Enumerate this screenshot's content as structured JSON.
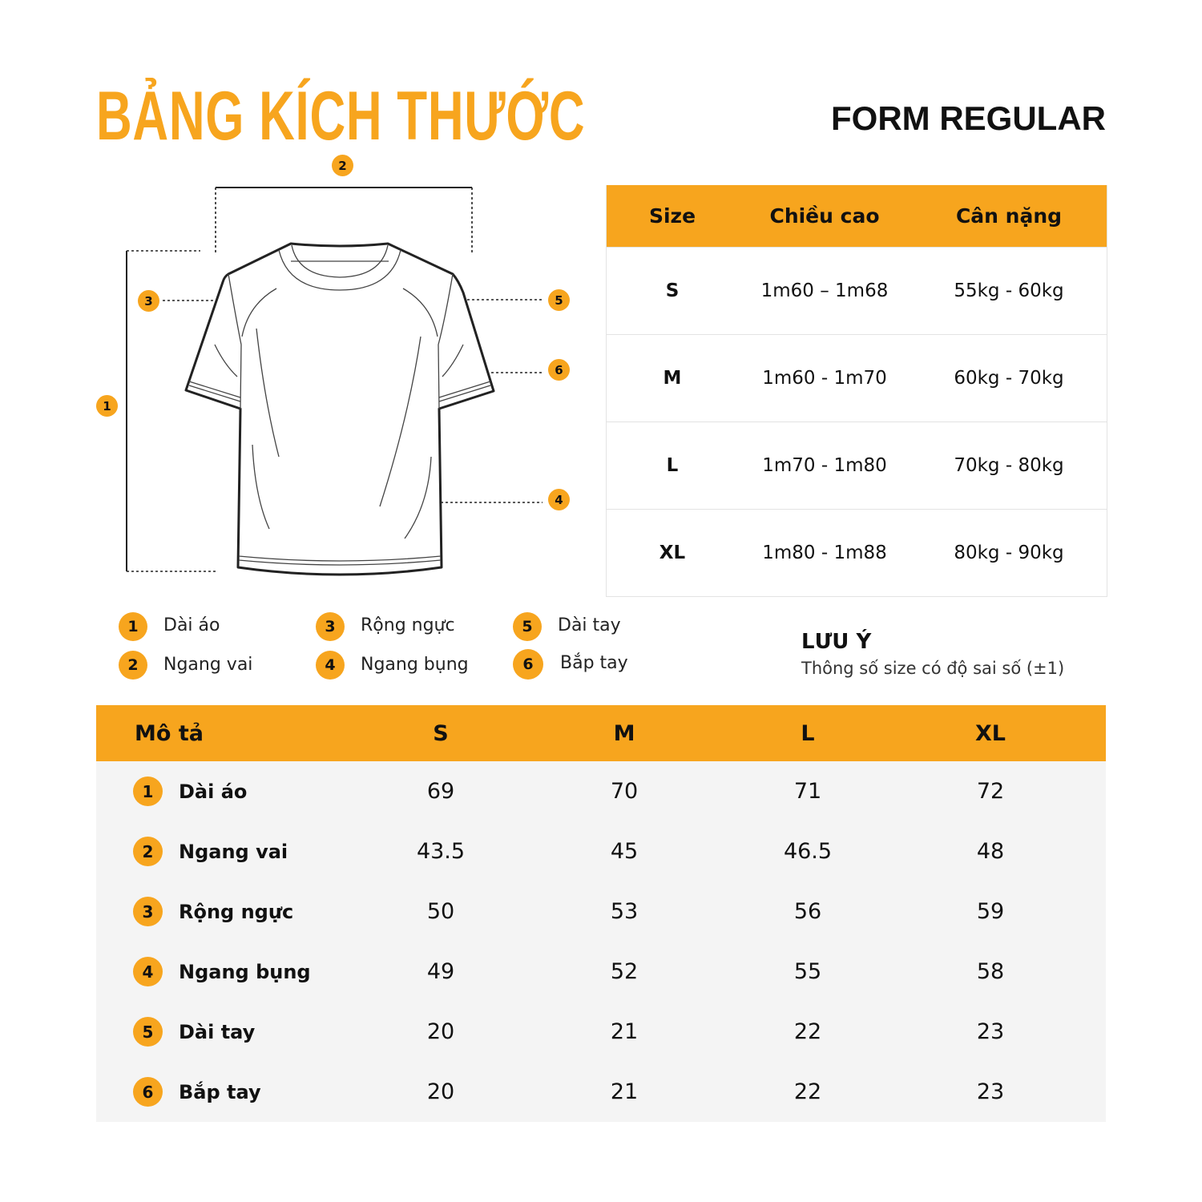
{
  "title": "BẢNG KÍCH THƯỚC",
  "form": "FORM REGULAR",
  "colors": {
    "accent": "#F7A51E",
    "row_alt": "#F4F4F4"
  },
  "diagram_markers": [
    "1",
    "2",
    "3",
    "4",
    "5",
    "6"
  ],
  "size_table": {
    "headers": [
      "Size",
      "Chiều cao",
      "Cân nặng"
    ],
    "rows": [
      [
        "S",
        "1m60 – 1m68",
        "55kg - 60kg"
      ],
      [
        "M",
        "1m60 - 1m70",
        "60kg - 70kg"
      ],
      [
        "L",
        "1m70 - 1m80",
        "70kg - 80kg"
      ],
      [
        "XL",
        "1m80 - 1m88",
        "80kg - 90kg"
      ]
    ]
  },
  "legend": [
    {
      "num": "1",
      "label": "Dài áo"
    },
    {
      "num": "2",
      "label": "Ngang vai"
    },
    {
      "num": "3",
      "label": "Rộng ngực"
    },
    {
      "num": "4",
      "label": "Ngang bụng"
    },
    {
      "num": "5",
      "label": "Dài tay"
    },
    {
      "num": "6",
      "label": "Bắp tay"
    }
  ],
  "note": {
    "title": "LƯU Ý",
    "text": "Thông số size có độ sai số (±1)"
  },
  "measurements": {
    "headers": [
      "Mô tả",
      "S",
      "M",
      "L",
      "XL"
    ],
    "rows": [
      {
        "num": "1",
        "label": "Dài áo",
        "values": [
          "69",
          "70",
          "71",
          "72"
        ]
      },
      {
        "num": "2",
        "label": "Ngang vai",
        "values": [
          "43.5",
          "45",
          "46.5",
          "48"
        ]
      },
      {
        "num": "3",
        "label": "Rộng ngực",
        "values": [
          "50",
          "53",
          "56",
          "59"
        ]
      },
      {
        "num": "4",
        "label": "Ngang bụng",
        "values": [
          "49",
          "52",
          "55",
          "58"
        ]
      },
      {
        "num": "5",
        "label": "Dài tay",
        "values": [
          "20",
          "21",
          "22",
          "23"
        ]
      },
      {
        "num": "6",
        "label": "Bắp tay",
        "values": [
          "20",
          "21",
          "22",
          "23"
        ]
      }
    ]
  }
}
